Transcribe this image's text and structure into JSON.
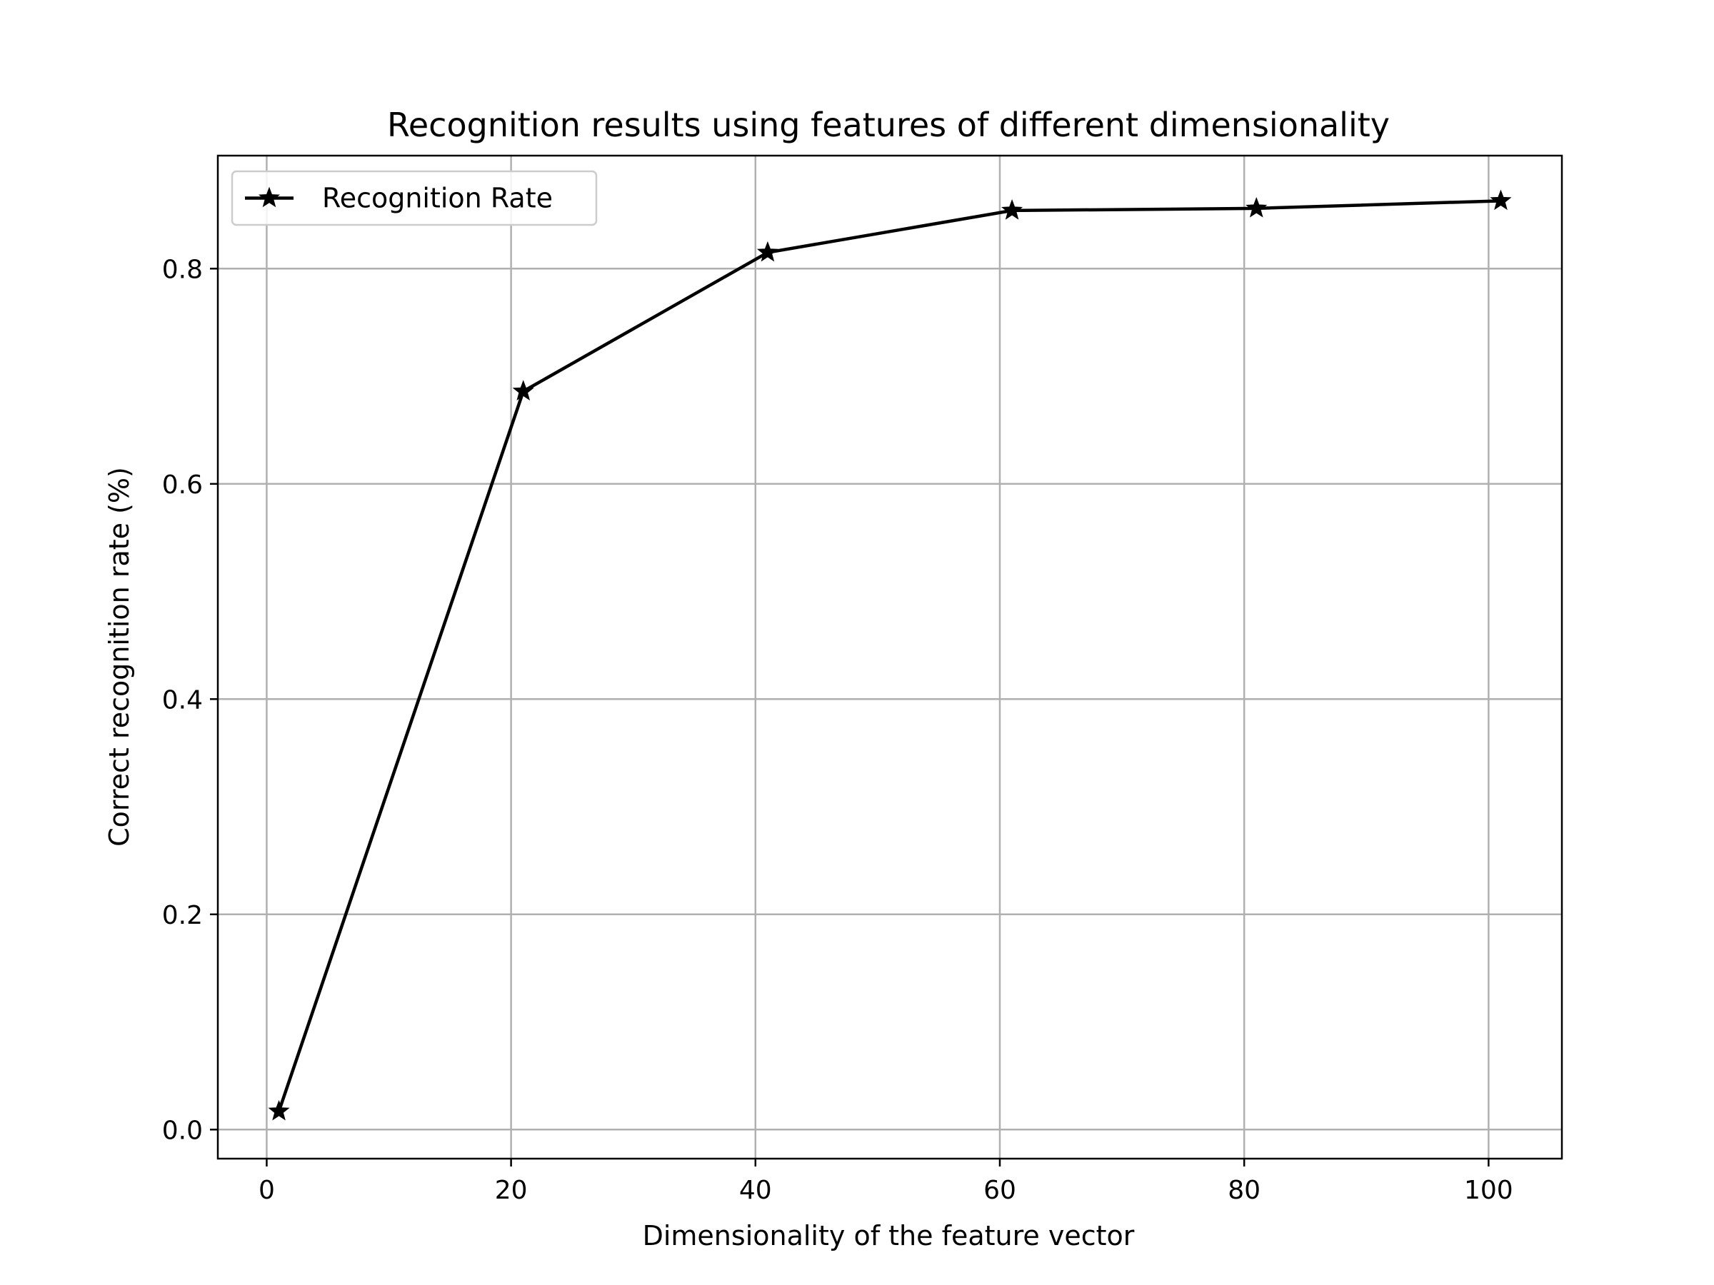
{
  "chart_data": {
    "type": "line",
    "title": "Recognition results using features of different dimensionality",
    "xlabel": "Dimensionality of the feature vector",
    "ylabel": "Correct recognition rate (%)",
    "xlim": [
      -4,
      106
    ],
    "ylim": [
      -0.027,
      0.905
    ],
    "x_ticks": [
      0,
      20,
      40,
      60,
      80,
      100
    ],
    "y_ticks": [
      0.0,
      0.2,
      0.4,
      0.6,
      0.8
    ],
    "x_tick_labels": [
      "0",
      "20",
      "40",
      "60",
      "80",
      "100"
    ],
    "y_tick_labels": [
      "0.0",
      "0.2",
      "0.4",
      "0.6",
      "0.8"
    ],
    "grid": true,
    "legend_position": "top-left",
    "series": [
      {
        "name": "Recognition Rate",
        "color": "#000000",
        "marker": "star",
        "x": [
          1,
          21,
          41,
          61,
          81,
          101
        ],
        "y": [
          0.017,
          0.686,
          0.815,
          0.854,
          0.856,
          0.863
        ]
      }
    ]
  }
}
